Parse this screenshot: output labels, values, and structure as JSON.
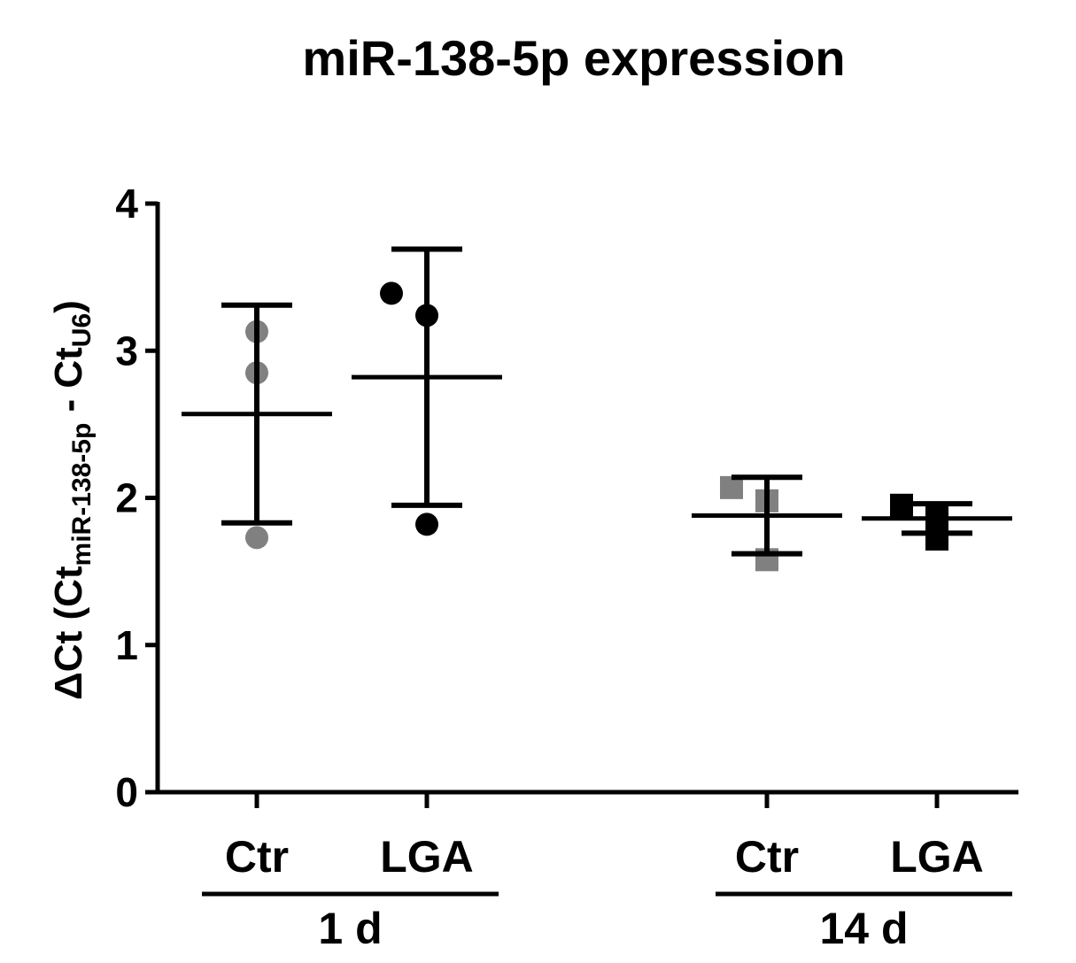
{
  "chart_data": {
    "type": "scatter",
    "title": "miR-138-5p expression",
    "ylabel": {
      "main": "ΔCt (Ct",
      "sub1": "miR-138-5p",
      "mid": " - Ct",
      "sub2": "U6",
      "close": ")"
    },
    "ylim": [
      0,
      4
    ],
    "yticks": [
      0,
      1,
      2,
      3,
      4
    ],
    "ytick_labels": [
      "0",
      "1",
      "2",
      "3",
      "4"
    ],
    "categories": [
      "Ctr",
      "LGA",
      "Ctr",
      "LGA"
    ],
    "groups": [
      {
        "label": "1 d",
        "categories": [
          0,
          1
        ]
      },
      {
        "label": "14 d",
        "categories": [
          2,
          3
        ]
      }
    ],
    "series": [
      {
        "category": 0,
        "marker": "circle",
        "color": "#808080",
        "points": [
          3.13,
          2.85,
          1.73
        ],
        "mean": 2.57,
        "sd_low": 1.83,
        "sd_high": 3.31
      },
      {
        "category": 1,
        "marker": "circle",
        "color": "#000000",
        "points": [
          3.39,
          3.24,
          1.82
        ],
        "mean": 2.82,
        "sd_low": 1.95,
        "sd_high": 3.69
      },
      {
        "category": 2,
        "marker": "square",
        "color": "#808080",
        "points": [
          2.07,
          1.98,
          1.58
        ],
        "mean": 1.88,
        "sd_low": 1.62,
        "sd_high": 2.14
      },
      {
        "category": 3,
        "marker": "square",
        "color": "#000000",
        "points": [
          1.95,
          1.87,
          1.72
        ],
        "mean": 1.86,
        "sd_low": 1.76,
        "sd_high": 1.96
      }
    ],
    "grid": false,
    "legend": "none"
  }
}
